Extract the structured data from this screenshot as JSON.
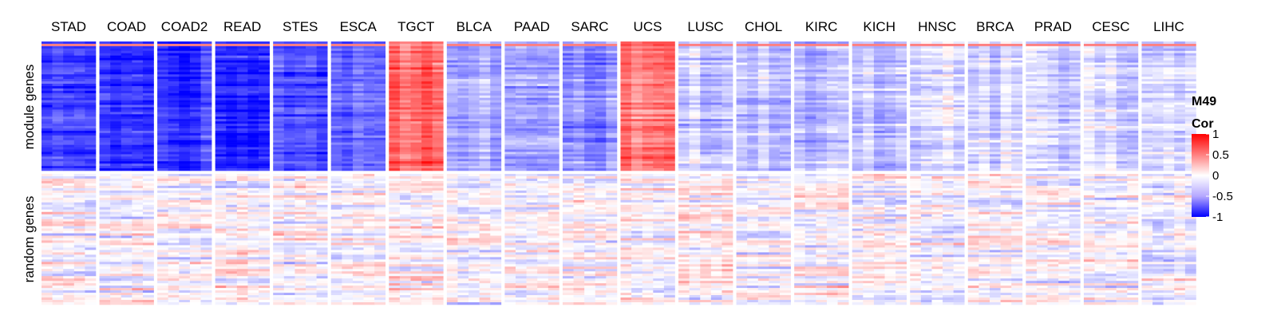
{
  "chart_data": {
    "type": "heatmap",
    "title": "",
    "columns": [
      "STAD",
      "COAD",
      "COAD2",
      "READ",
      "STES",
      "ESCA",
      "TGCT",
      "BLCA",
      "PAAD",
      "SARC",
      "UCS",
      "LUSC",
      "CHOL",
      "KIRC",
      "KICH",
      "HNSC",
      "BRCA",
      "PRAD",
      "CESC",
      "LIHC"
    ],
    "rows": [
      "module genes",
      "random genes"
    ],
    "legend": {
      "title_line1": "M49",
      "title_line2": "Cor",
      "ticks": [
        "1",
        "0.5",
        "0",
        "-0.5",
        "-1"
      ],
      "tick_values": [
        1,
        0.5,
        0,
        -0.5,
        -1
      ],
      "range": [
        -1,
        1
      ],
      "colors": {
        "low": "#0000ff",
        "mid": "#ffffff",
        "high": "#ff0000"
      }
    },
    "module_mean_cor": [
      -0.78,
      -0.78,
      -0.78,
      -0.82,
      -0.72,
      -0.6,
      0.6,
      -0.35,
      -0.32,
      -0.42,
      0.55,
      -0.2,
      -0.22,
      -0.2,
      -0.28,
      -0.12,
      -0.15,
      -0.1,
      -0.15,
      -0.12
    ],
    "random_mean_cor": [
      0,
      0,
      0,
      0,
      0,
      0,
      0,
      0,
      0,
      0,
      0,
      0,
      0,
      0,
      0,
      0,
      0,
      0,
      0,
      0
    ],
    "legend_position": "right"
  }
}
